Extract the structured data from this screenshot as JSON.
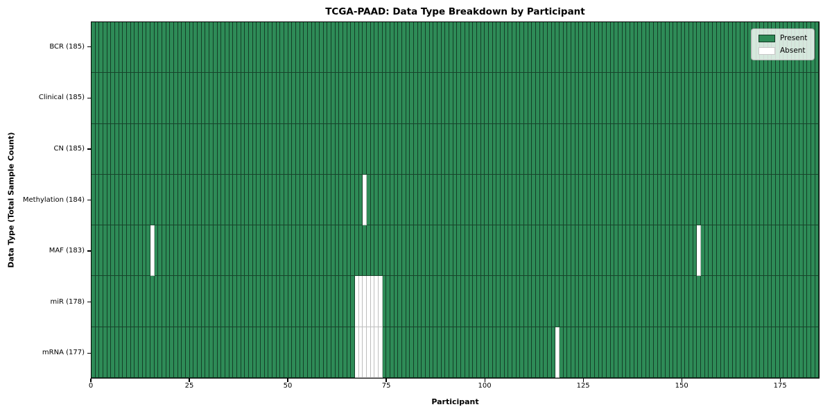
{
  "title": "TCGA-PAAD: Data Type Breakdown by Participant",
  "xlabel": "Participant",
  "ylabel": "Data Type (Total Sample Count)",
  "legend": {
    "present_label": "Present",
    "absent_label": "Absent"
  },
  "colors": {
    "present": "#2e8b57",
    "absent": "#ffffff",
    "present_edge": "rgba(0,0,0,0.55)",
    "absent_edge": "#bdbdbd",
    "plot_border": "#000000",
    "legend_background": "rgba(255,255,255,0.8)"
  },
  "chart_data": {
    "type": "heatmap",
    "title": "TCGA-PAAD: Data Type Breakdown by Participant",
    "xlabel": "Participant",
    "ylabel": "Data Type (Total Sample Count)",
    "legend_entries": [
      "Present",
      "Absent"
    ],
    "legend_position": "upper right",
    "grid": false,
    "n_participants": 185,
    "xlim": [
      0,
      185
    ],
    "x_ticks": [
      0,
      25,
      50,
      75,
      100,
      125,
      150,
      175
    ],
    "value_encoding": {
      "present": 1,
      "absent": 0
    },
    "rows": [
      {
        "label": "BCR (185)",
        "data_type": "BCR",
        "total_sample_count": 185,
        "absent_participants": []
      },
      {
        "label": "Clinical (185)",
        "data_type": "Clinical",
        "total_sample_count": 185,
        "absent_participants": []
      },
      {
        "label": "CN (185)",
        "data_type": "CN",
        "total_sample_count": 185,
        "absent_participants": []
      },
      {
        "label": "Methylation (184)",
        "data_type": "Methylation",
        "total_sample_count": 184,
        "absent_participants": [
          69
        ]
      },
      {
        "label": "MAF (183)",
        "data_type": "MAF",
        "total_sample_count": 183,
        "absent_participants": [
          15,
          154
        ]
      },
      {
        "label": "miR (178)",
        "data_type": "miR",
        "total_sample_count": 178,
        "absent_participants": [
          67,
          68,
          69,
          70,
          71,
          72,
          73
        ]
      },
      {
        "label": "mRNA (177)",
        "data_type": "mRNA",
        "total_sample_count": 177,
        "absent_participants": [
          67,
          68,
          69,
          70,
          71,
          72,
          73,
          118
        ]
      }
    ]
  }
}
